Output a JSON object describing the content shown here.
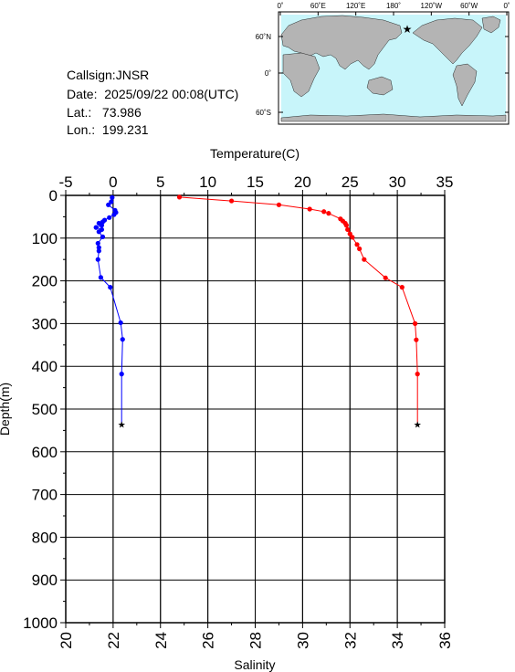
{
  "station": {
    "callsign_label": "Callsign:",
    "callsign": "JNSR",
    "date_label": "Date:",
    "date": "2025/09/22 00:08(UTC)",
    "lat_label": "Lat.:",
    "lat": "73.986",
    "lon_label": "Lon.:",
    "lon": "199.231"
  },
  "map": {
    "top_labels": [
      "0˚",
      "60˚E",
      "120˚E",
      "180˚",
      "120˚W",
      "60˚W",
      "0˚"
    ],
    "side_labels": [
      "60˚N",
      "0˚",
      "60˚S"
    ],
    "ocean_color": "#c8f5fa",
    "land_color": "#b4b4b4",
    "marker_color": "#ff0000"
  },
  "chart_data": {
    "type": "line",
    "title": "",
    "ylabel": "Depth(m)",
    "ylim": [
      1000,
      0
    ],
    "yticks": [
      0,
      100,
      200,
      300,
      400,
      500,
      600,
      700,
      800,
      900,
      1000
    ],
    "grid": true,
    "top_axis": {
      "label": "Temperature(C)",
      "lim": [
        -5,
        35
      ],
      "ticks": [
        -5,
        0,
        5,
        10,
        15,
        20,
        25,
        30,
        35
      ]
    },
    "bottom_axis": {
      "label": "Salinity",
      "lim": [
        20,
        36
      ],
      "ticks": [
        20,
        22,
        24,
        26,
        28,
        30,
        32,
        34,
        36
      ]
    },
    "series": [
      {
        "axis": "top",
        "color": "#0000ff",
        "marker": "circle",
        "points": [
          [
            -0.1,
            5
          ],
          [
            -0.2,
            15
          ],
          [
            -0.5,
            22
          ],
          [
            0.2,
            35
          ],
          [
            0.3,
            40
          ],
          [
            0.1,
            45
          ],
          [
            -0.4,
            52
          ],
          [
            -0.9,
            58
          ],
          [
            -1.1,
            62
          ],
          [
            -1.5,
            65
          ],
          [
            -1.2,
            70
          ],
          [
            -1.8,
            75
          ],
          [
            -1.2,
            80
          ],
          [
            -1.5,
            85
          ],
          [
            -1.1,
            97
          ],
          [
            -1.6,
            112
          ],
          [
            -1.5,
            122
          ],
          [
            -1.5,
            130
          ],
          [
            -1.6,
            150
          ],
          [
            -1.3,
            192
          ],
          [
            -0.3,
            215
          ],
          [
            0.8,
            298
          ],
          [
            1.0,
            337
          ],
          [
            0.9,
            418
          ],
          [
            0.9,
            535
          ]
        ]
      },
      {
        "axis": "bottom",
        "color": "#ff0000",
        "marker": "circle",
        "points": [
          [
            24.8,
            4
          ],
          [
            27.0,
            13
          ],
          [
            29.0,
            22
          ],
          [
            30.3,
            32
          ],
          [
            30.9,
            38
          ],
          [
            31.1,
            42
          ],
          [
            31.6,
            55
          ],
          [
            31.7,
            60
          ],
          [
            31.8,
            65
          ],
          [
            31.85,
            70
          ],
          [
            31.9,
            80
          ],
          [
            32.0,
            90
          ],
          [
            32.1,
            98
          ],
          [
            32.3,
            115
          ],
          [
            32.4,
            125
          ],
          [
            32.6,
            150
          ],
          [
            33.5,
            193
          ],
          [
            34.2,
            215
          ],
          [
            34.75,
            300
          ],
          [
            34.8,
            338
          ],
          [
            34.85,
            418
          ],
          [
            34.85,
            535
          ]
        ]
      }
    ]
  }
}
